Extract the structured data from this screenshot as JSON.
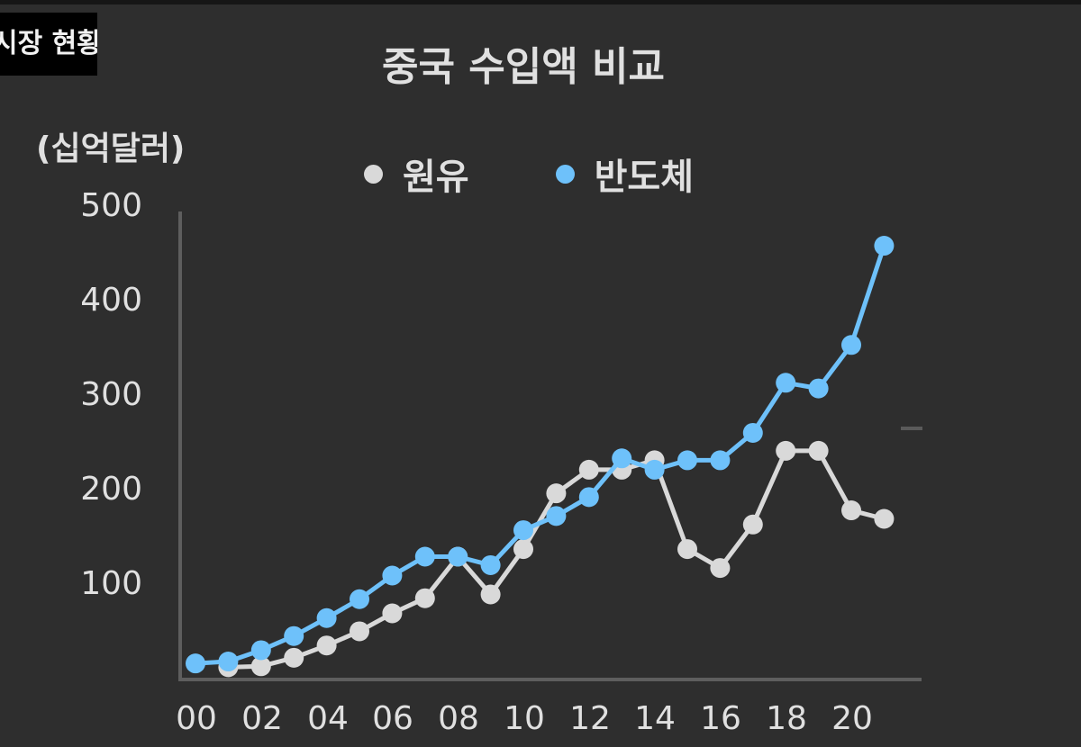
{
  "tag": {
    "label": "시장 현황"
  },
  "chart_data": {
    "type": "line",
    "title": "중국 수입액 비교",
    "ylabel": "(십억달러)",
    "xlabel": "",
    "ylim": [
      0,
      500
    ],
    "yticks": [
      "500",
      "400",
      "300",
      "200",
      "100"
    ],
    "xticks": [
      "00",
      "02",
      "04",
      "06",
      "08",
      "10",
      "12",
      "14",
      "16",
      "18",
      "20"
    ],
    "grid": false,
    "legend_position": "top",
    "x": [
      "00",
      "01",
      "02",
      "03",
      "04",
      "05",
      "06",
      "07",
      "08",
      "09",
      "10",
      "11",
      "12",
      "13",
      "14",
      "15",
      "16",
      "17",
      "18",
      "19",
      "20",
      "21"
    ],
    "series": [
      {
        "name": "원유",
        "color": "#d9d9d9",
        "values": [
          null,
          13,
          14,
          23,
          36,
          51,
          70,
          86,
          130,
          90,
          138,
          197,
          222,
          222,
          232,
          138,
          118,
          164,
          242,
          242,
          179,
          170
        ]
      },
      {
        "name": "반도체",
        "color": "#6ec1fa",
        "values": [
          17,
          19,
          31,
          46,
          65,
          85,
          110,
          130,
          130,
          121,
          158,
          173,
          193,
          234,
          222,
          232,
          232,
          261,
          314,
          308,
          354,
          459
        ]
      }
    ]
  },
  "colors": {
    "background": "#2e2e2e",
    "axis": "#5e5e5e",
    "text": "#e0e0e0"
  }
}
